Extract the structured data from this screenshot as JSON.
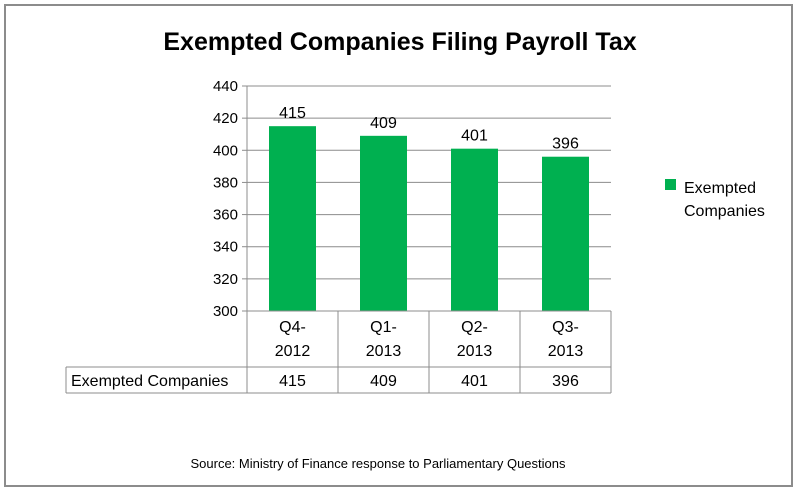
{
  "chart_data": {
    "type": "bar",
    "title": "Exempted Companies Filing Payroll Tax",
    "categories": [
      "Q4-2012",
      "Q1-2013",
      "Q2-2013",
      "Q3-2013"
    ],
    "category_lines": [
      [
        "Q4-",
        "2012"
      ],
      [
        "Q1-",
        "2013"
      ],
      [
        "Q2-",
        "2013"
      ],
      [
        "Q3-",
        "2013"
      ]
    ],
    "series": [
      {
        "name": "Exempted Companies",
        "values": [
          415,
          409,
          401,
          396
        ],
        "color": "#00b050"
      }
    ],
    "legend_lines": [
      "Exempted",
      "Companies"
    ],
    "ylim": [
      300,
      440
    ],
    "yticks": [
      300,
      320,
      340,
      360,
      380,
      400,
      420,
      440
    ],
    "xlabel": "",
    "ylabel": "",
    "grid": true,
    "legend": "right",
    "data_table": {
      "row_label": "Exempted Companies",
      "values": [
        "415",
        "409",
        "401",
        "396"
      ]
    }
  },
  "source_note": "Source: Ministry of Finance response to Parliamentary Questions"
}
